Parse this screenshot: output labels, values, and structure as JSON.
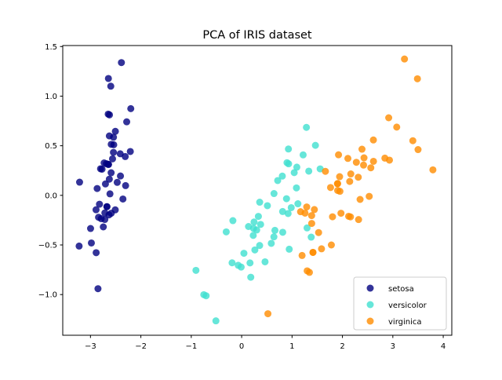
{
  "chart_data": {
    "type": "scatter",
    "title": "PCA of IRIS dataset",
    "xlabel": "",
    "ylabel": "",
    "xlim": [
      -3.55,
      4.17
    ],
    "ylim": [
      -1.41,
      1.51
    ],
    "xticks": [
      -3,
      -2,
      -1,
      0,
      1,
      2,
      3,
      4
    ],
    "xtick_labels": [
      "−3",
      "−2",
      "−1",
      "0",
      "1",
      "2",
      "3",
      "4"
    ],
    "yticks": [
      -1.0,
      -0.5,
      0.0,
      0.5,
      1.0,
      1.5
    ],
    "ytick_labels": [
      "−1.0",
      "−0.5",
      "0.0",
      "0.5",
      "1.0",
      "1.5"
    ],
    "grid": false,
    "legend_position": "bottom-right",
    "series": [
      {
        "name": "setosa",
        "color": "#000080",
        "points": [
          [
            -2.684,
            0.319
          ],
          [
            -2.714,
            -0.177
          ],
          [
            -2.889,
            -0.145
          ],
          [
            -2.745,
            -0.318
          ],
          [
            -2.729,
            0.327
          ],
          [
            -2.281,
            0.741
          ],
          [
            -2.821,
            -0.089
          ],
          [
            -2.626,
            0.163
          ],
          [
            -2.887,
            -0.578
          ],
          [
            -2.674,
            -0.114
          ],
          [
            -2.506,
            0.645
          ],
          [
            -2.613,
            0.015
          ],
          [
            -2.787,
            -0.235
          ],
          [
            -3.225,
            -0.511
          ],
          [
            -2.644,
            1.178
          ],
          [
            -2.386,
            1.338
          ],
          [
            -2.623,
            0.811
          ],
          [
            -2.648,
            0.312
          ],
          [
            -2.2,
            0.874
          ],
          [
            -2.588,
            0.514
          ],
          [
            -2.31,
            0.391
          ],
          [
            -2.544,
            0.433
          ],
          [
            -3.216,
            0.133
          ],
          [
            -2.303,
            0.098
          ],
          [
            -2.356,
            -0.037
          ],
          [
            -2.508,
            -0.146
          ],
          [
            -2.469,
            0.131
          ],
          [
            -2.562,
            0.368
          ],
          [
            -2.64,
            0.312
          ],
          [
            -2.632,
            -0.197
          ],
          [
            -2.588,
            -0.18
          ],
          [
            -2.41,
            0.419
          ],
          [
            -2.648,
            0.819
          ],
          [
            -2.597,
            1.1
          ],
          [
            -2.673,
            -0.114
          ],
          [
            -2.867,
            0.069
          ],
          [
            -2.625,
            0.599
          ],
          [
            -2.8,
            0.268
          ],
          [
            -2.982,
            -0.48
          ],
          [
            -2.59,
            0.228
          ],
          [
            -2.77,
            0.264
          ],
          [
            -2.851,
            -0.941
          ],
          [
            -2.998,
            -0.334
          ],
          [
            -2.405,
            0.195
          ],
          [
            -2.209,
            0.442
          ],
          [
            -2.715,
            -0.243
          ],
          [
            -2.538,
            0.51
          ],
          [
            -2.84,
            -0.221
          ],
          [
            -2.543,
            0.586
          ],
          [
            -2.703,
            0.115
          ]
        ]
      },
      {
        "name": "versicolor",
        "color": "#40E0D0",
        "points": [
          [
            1.285,
            0.685
          ],
          [
            0.932,
            0.318
          ],
          [
            1.464,
            0.504
          ],
          [
            0.181,
            -0.825
          ],
          [
            1.087,
            0.075
          ],
          [
            0.64,
            -0.418
          ],
          [
            1.095,
            0.284
          ],
          [
            -0.751,
            -1.001
          ],
          [
            1.043,
            0.229
          ],
          [
            -0.01,
            -0.723
          ],
          [
            -0.511,
            -1.265
          ],
          [
            0.511,
            -0.104
          ],
          [
            0.262,
            -0.55
          ],
          [
            0.984,
            -0.124
          ],
          [
            -0.174,
            -0.255
          ],
          [
            0.928,
            0.467
          ],
          [
            0.66,
            -0.353
          ],
          [
            0.236,
            -0.333
          ],
          [
            0.944,
            -0.543
          ],
          [
            0.045,
            -0.584
          ],
          [
            1.116,
            -0.085
          ],
          [
            0.358,
            -0.069
          ],
          [
            1.298,
            -0.328
          ],
          [
            0.922,
            -0.183
          ],
          [
            0.715,
            0.149
          ],
          [
            0.9,
            0.329
          ],
          [
            1.332,
            0.244
          ],
          [
            1.558,
            0.267
          ],
          [
            0.813,
            -0.163
          ],
          [
            -0.306,
            -0.368
          ],
          [
            -0.068,
            -0.705
          ],
          [
            -0.19,
            -0.68
          ],
          [
            0.136,
            -0.314
          ],
          [
            1.38,
            -0.421
          ],
          [
            0.588,
            -0.484
          ],
          [
            0.807,
            0.194
          ],
          [
            1.22,
            0.408
          ],
          [
            0.815,
            -0.372
          ],
          [
            0.246,
            -0.269
          ],
          [
            0.166,
            -0.681
          ],
          [
            0.464,
            -0.67
          ],
          [
            0.89,
            -0.034
          ],
          [
            0.23,
            -0.404
          ],
          [
            -0.705,
            -1.012
          ],
          [
            0.357,
            -0.505
          ],
          [
            0.332,
            -0.212
          ],
          [
            0.376,
            -0.293
          ],
          [
            0.642,
            0.018
          ],
          [
            -0.907,
            -0.756
          ],
          [
            0.299,
            -0.349
          ]
        ]
      },
      {
        "name": "virginica",
        "color": "#FF8C00",
        "points": [
          [
            2.531,
            -0.01
          ],
          [
            1.415,
            -0.575
          ],
          [
            2.616,
            0.343
          ],
          [
            1.971,
            -0.18
          ],
          [
            2.35,
            -0.041
          ],
          [
            3.397,
            0.551
          ],
          [
            0.521,
            -1.193
          ],
          [
            2.933,
            0.355
          ],
          [
            2.32,
            -0.244
          ],
          [
            2.918,
            0.782
          ],
          [
            1.662,
            0.242
          ],
          [
            1.803,
            -0.216
          ],
          [
            2.166,
            0.216
          ],
          [
            1.345,
            -0.776
          ],
          [
            1.585,
            -0.539
          ],
          [
            1.905,
            0.119
          ],
          [
            1.95,
            0.041
          ],
          [
            3.488,
            1.175
          ],
          [
            3.795,
            0.257
          ],
          [
            1.3,
            -0.761
          ],
          [
            2.428,
            0.378
          ],
          [
            1.199,
            -0.606
          ],
          [
            3.5,
            0.461
          ],
          [
            1.389,
            -0.204
          ],
          [
            2.276,
            0.333
          ],
          [
            2.614,
            0.558
          ],
          [
            1.258,
            -0.179
          ],
          [
            1.291,
            -0.117
          ],
          [
            2.123,
            -0.211
          ],
          [
            2.388,
            0.465
          ],
          [
            2.842,
            0.375
          ],
          [
            3.231,
            1.374
          ],
          [
            2.159,
            -0.217
          ],
          [
            1.443,
            -0.143
          ],
          [
            1.78,
            -0.5
          ],
          [
            3.077,
            0.688
          ],
          [
            2.144,
            0.14
          ],
          [
            1.905,
            0.049
          ],
          [
            1.169,
            -0.165
          ],
          [
            2.108,
            0.372
          ],
          [
            2.314,
            0.183
          ],
          [
            1.922,
            0.409
          ],
          [
            1.415,
            -0.575
          ],
          [
            2.563,
            0.278
          ],
          [
            2.419,
            0.305
          ],
          [
            1.944,
            0.188
          ],
          [
            1.527,
            -0.375
          ],
          [
            1.764,
            0.079
          ],
          [
            1.901,
            0.117
          ],
          [
            1.39,
            -0.283
          ]
        ]
      }
    ]
  }
}
